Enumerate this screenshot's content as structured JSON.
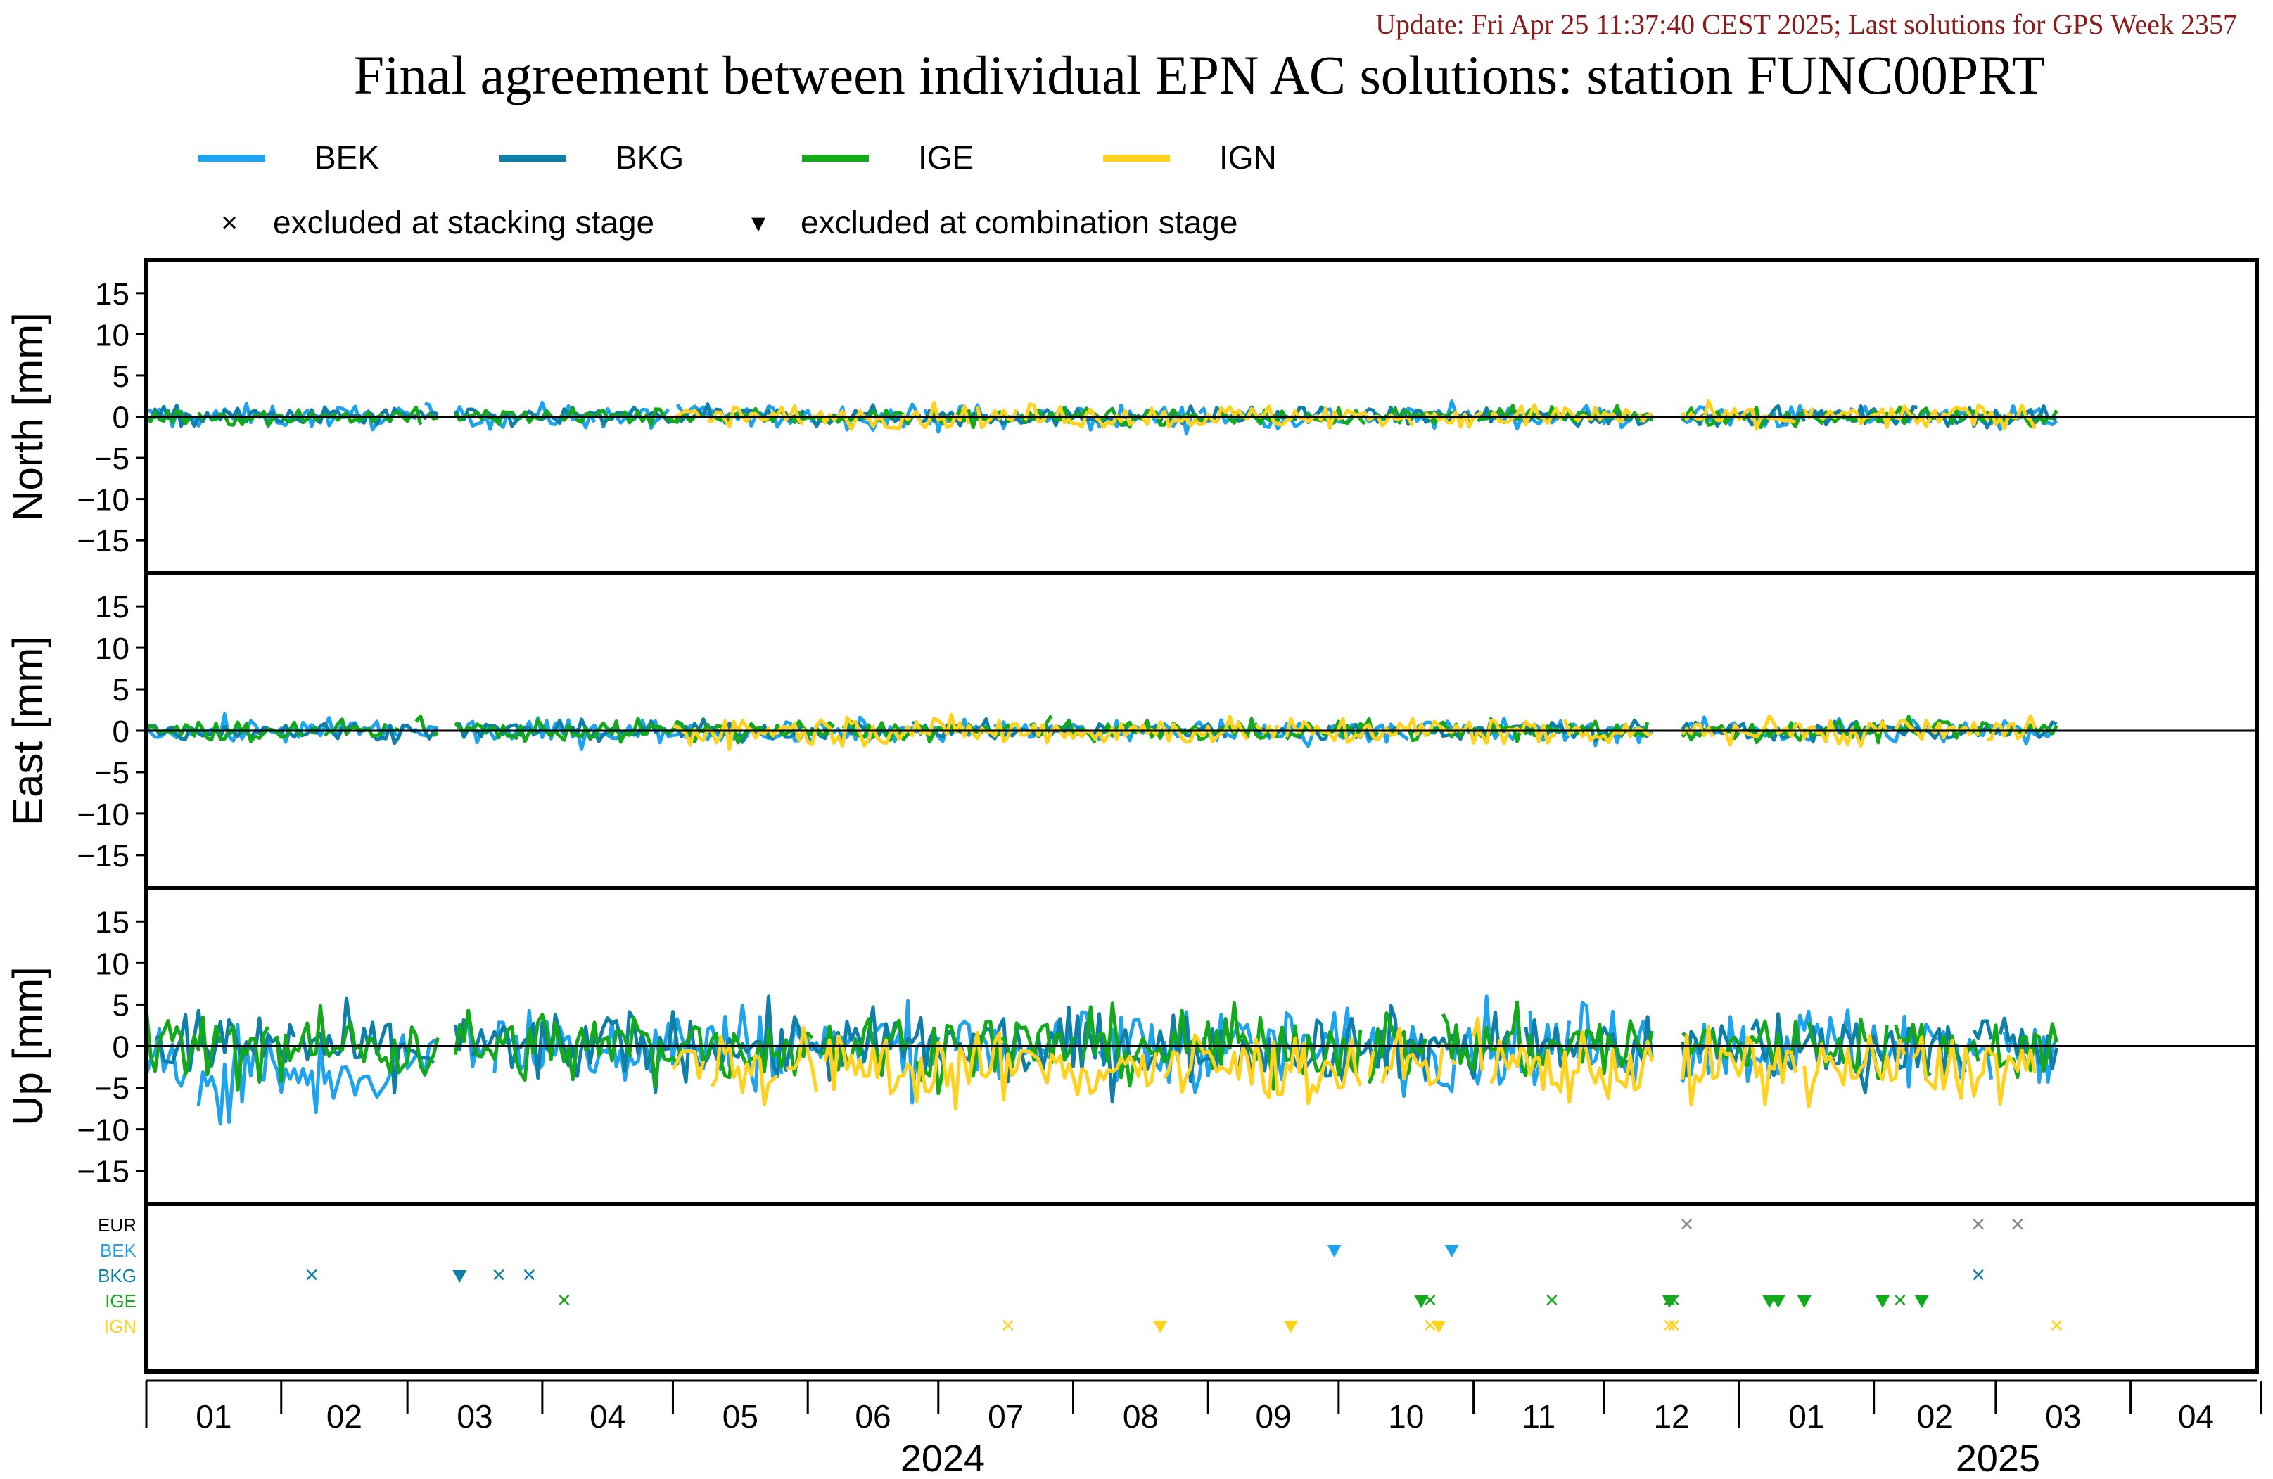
{
  "header": {
    "update_text": "Update: Fri Apr 25 11:37:40 CEST 2025; Last solutions for GPS Week 2357",
    "title": "Final agreement between individual EPN AC solutions: station FUNC00PRT"
  },
  "legend": {
    "series": [
      {
        "name": "BEK",
        "color": "#1fa3ec"
      },
      {
        "name": "BKG",
        "color": "#0f7fa8"
      },
      {
        "name": "IGE",
        "color": "#13a91b"
      },
      {
        "name": "IGN",
        "color": "#ffd21f"
      }
    ],
    "markers": [
      {
        "symbol": "×",
        "label": "excluded at stacking stage"
      },
      {
        "symbol": "▾",
        "label": "excluded at combination stage"
      }
    ]
  },
  "chart_data": {
    "type": "line",
    "x_axis": {
      "month_labels": [
        "01",
        "02",
        "03",
        "04",
        "05",
        "06",
        "07",
        "08",
        "09",
        "10",
        "11",
        "12",
        "01",
        "02",
        "03",
        "04"
      ],
      "year_labels": [
        "2024",
        "2025"
      ],
      "range": [
        "2024-01-01",
        "2025-04-30"
      ]
    },
    "panels": [
      {
        "id": "north",
        "ylabel": "North [mm]",
        "ylim": [
          -19,
          19
        ],
        "yticks": [
          15,
          10,
          5,
          0,
          -5,
          -10,
          -15
        ],
        "series": [
          {
            "name": "BEK",
            "start": "2024-01-01",
            "end": "2025-03-15",
            "gaps": [
              [
                "2024-03-09",
                "2024-03-11"
              ],
              [
                "2024-12-13",
                "2024-12-18"
              ]
            ],
            "amplitude_mm": 1.0,
            "range_mm": [
              -3.5,
              3.5
            ]
          },
          {
            "name": "BKG",
            "start": "2024-01-01",
            "end": "2025-03-15",
            "gaps": [
              [
                "2024-03-09",
                "2024-03-11"
              ],
              [
                "2024-12-13",
                "2024-12-18"
              ]
            ],
            "amplitude_mm": 0.8,
            "range_mm": [
              -2.5,
              2.0
            ]
          },
          {
            "name": "IGE",
            "start": "2024-01-01",
            "end": "2025-03-15",
            "gaps": [
              [
                "2024-03-09",
                "2024-03-11"
              ],
              [
                "2024-12-13",
                "2024-12-18"
              ]
            ],
            "amplitude_mm": 0.7,
            "range_mm": [
              -2.0,
              1.5
            ]
          },
          {
            "name": "IGN",
            "start": "2024-05-01",
            "end": "2025-03-10",
            "gaps": [
              [
                "2024-12-13",
                "2024-12-18"
              ]
            ],
            "amplitude_mm": 1.0,
            "range_mm": [
              -1.5,
              3.5
            ]
          }
        ]
      },
      {
        "id": "east",
        "ylabel": "East [mm]",
        "ylim": [
          -19,
          19
        ],
        "yticks": [
          15,
          10,
          5,
          0,
          -5,
          -10,
          -15
        ],
        "series": [
          {
            "name": "BEK",
            "start": "2024-01-01",
            "end": "2025-03-15",
            "gaps": [
              [
                "2024-03-09",
                "2024-03-11"
              ],
              [
                "2024-12-13",
                "2024-12-18"
              ]
            ],
            "amplitude_mm": 1.0,
            "range_mm": [
              -3.0,
              4.0
            ]
          },
          {
            "name": "BKG",
            "start": "2024-01-01",
            "end": "2025-03-15",
            "gaps": [
              [
                "2024-03-09",
                "2024-03-11"
              ],
              [
                "2024-12-13",
                "2024-12-18"
              ]
            ],
            "amplitude_mm": 0.8,
            "range_mm": [
              -3.0,
              2.0
            ]
          },
          {
            "name": "IGE",
            "start": "2024-01-01",
            "end": "2025-03-15",
            "gaps": [
              [
                "2024-03-09",
                "2024-03-11"
              ],
              [
                "2024-12-13",
                "2024-12-18"
              ]
            ],
            "amplitude_mm": 0.9,
            "range_mm": [
              -3.5,
              4.5
            ]
          },
          {
            "name": "IGN",
            "start": "2024-05-01",
            "end": "2025-03-10",
            "gaps": [
              [
                "2024-12-13",
                "2024-12-18"
              ]
            ],
            "amplitude_mm": 1.2,
            "range_mm": [
              -3.5,
              4.0
            ]
          }
        ]
      },
      {
        "id": "up",
        "ylabel": "Up [mm]",
        "ylim": [
          -19,
          19
        ],
        "yticks": [
          15,
          10,
          5,
          0,
          -5,
          -10,
          -15
        ],
        "series": [
          {
            "name": "BEK",
            "start": "2024-01-01",
            "end": "2025-03-15",
            "gaps": [
              [
                "2024-03-09",
                "2024-03-11"
              ],
              [
                "2024-12-13",
                "2024-12-18"
              ]
            ],
            "amplitude_mm": 3.5,
            "range_mm": [
              -11.0,
              10.0
            ]
          },
          {
            "name": "BKG",
            "start": "2024-01-01",
            "end": "2025-03-15",
            "gaps": [
              [
                "2024-03-09",
                "2024-03-11"
              ],
              [
                "2024-12-13",
                "2024-12-18"
              ]
            ],
            "amplitude_mm": 3.0,
            "range_mm": [
              -8.0,
              8.0
            ]
          },
          {
            "name": "IGE",
            "start": "2024-01-01",
            "end": "2025-03-15",
            "gaps": [
              [
                "2024-03-09",
                "2024-03-11"
              ],
              [
                "2024-12-13",
                "2024-12-18"
              ]
            ],
            "amplitude_mm": 3.0,
            "range_mm": [
              -10.5,
              7.5
            ]
          },
          {
            "name": "IGN",
            "start": "2024-05-01",
            "end": "2025-03-10",
            "gaps": [
              [
                "2024-12-13",
                "2024-12-18"
              ]
            ],
            "amplitude_mm": 3.0,
            "range_mm": [
              -11.0,
              8.0
            ]
          }
        ]
      }
    ],
    "exclusions": {
      "row_labels": [
        {
          "name": "EUR",
          "color": "#000000"
        },
        {
          "name": "BEK",
          "color": "#1fa3ec"
        },
        {
          "name": "BKG",
          "color": "#0f7fa8"
        },
        {
          "name": "IGE",
          "color": "#13a91b"
        },
        {
          "name": "IGN",
          "color": "#ffd21f"
        }
      ],
      "events": [
        {
          "row": "EUR",
          "type": "stacking",
          "date": "2024-12-20"
        },
        {
          "row": "EUR",
          "type": "stacking",
          "date": "2025-02-25"
        },
        {
          "row": "EUR",
          "type": "stacking",
          "date": "2025-03-06"
        },
        {
          "row": "BEK",
          "type": "combination",
          "date": "2024-09-30"
        },
        {
          "row": "BEK",
          "type": "combination",
          "date": "2024-10-27"
        },
        {
          "row": "BKG",
          "type": "stacking",
          "date": "2024-02-08"
        },
        {
          "row": "BKG",
          "type": "combination",
          "date": "2024-03-13"
        },
        {
          "row": "BKG",
          "type": "stacking",
          "date": "2024-03-22"
        },
        {
          "row": "BKG",
          "type": "stacking",
          "date": "2024-03-29"
        },
        {
          "row": "BKG",
          "type": "stacking",
          "date": "2025-02-25"
        },
        {
          "row": "IGE",
          "type": "stacking",
          "date": "2024-04-06"
        },
        {
          "row": "IGE",
          "type": "combination",
          "date": "2024-10-20"
        },
        {
          "row": "IGE",
          "type": "stacking",
          "date": "2024-10-22"
        },
        {
          "row": "IGE",
          "type": "stacking",
          "date": "2024-11-19"
        },
        {
          "row": "IGE",
          "type": "stacking",
          "date": "2024-12-16"
        },
        {
          "row": "IGE",
          "type": "combination",
          "date": "2024-12-16"
        },
        {
          "row": "IGE",
          "type": "stacking",
          "date": "2024-12-17"
        },
        {
          "row": "IGE",
          "type": "combination",
          "date": "2025-01-08"
        },
        {
          "row": "IGE",
          "type": "combination",
          "date": "2025-01-10"
        },
        {
          "row": "IGE",
          "type": "combination",
          "date": "2025-01-16"
        },
        {
          "row": "IGE",
          "type": "combination",
          "date": "2025-02-03"
        },
        {
          "row": "IGE",
          "type": "stacking",
          "date": "2025-02-07"
        },
        {
          "row": "IGE",
          "type": "combination",
          "date": "2025-02-12"
        },
        {
          "row": "IGN",
          "type": "stacking",
          "date": "2024-07-17"
        },
        {
          "row": "IGN",
          "type": "combination",
          "date": "2024-08-21"
        },
        {
          "row": "IGN",
          "type": "combination",
          "date": "2024-09-20"
        },
        {
          "row": "IGN",
          "type": "stacking",
          "date": "2024-10-22"
        },
        {
          "row": "IGN",
          "type": "combination",
          "date": "2024-10-24"
        },
        {
          "row": "IGN",
          "type": "stacking",
          "date": "2024-12-16"
        },
        {
          "row": "IGN",
          "type": "stacking",
          "date": "2024-12-17"
        },
        {
          "row": "IGN",
          "type": "stacking",
          "date": "2025-03-15"
        }
      ]
    }
  }
}
